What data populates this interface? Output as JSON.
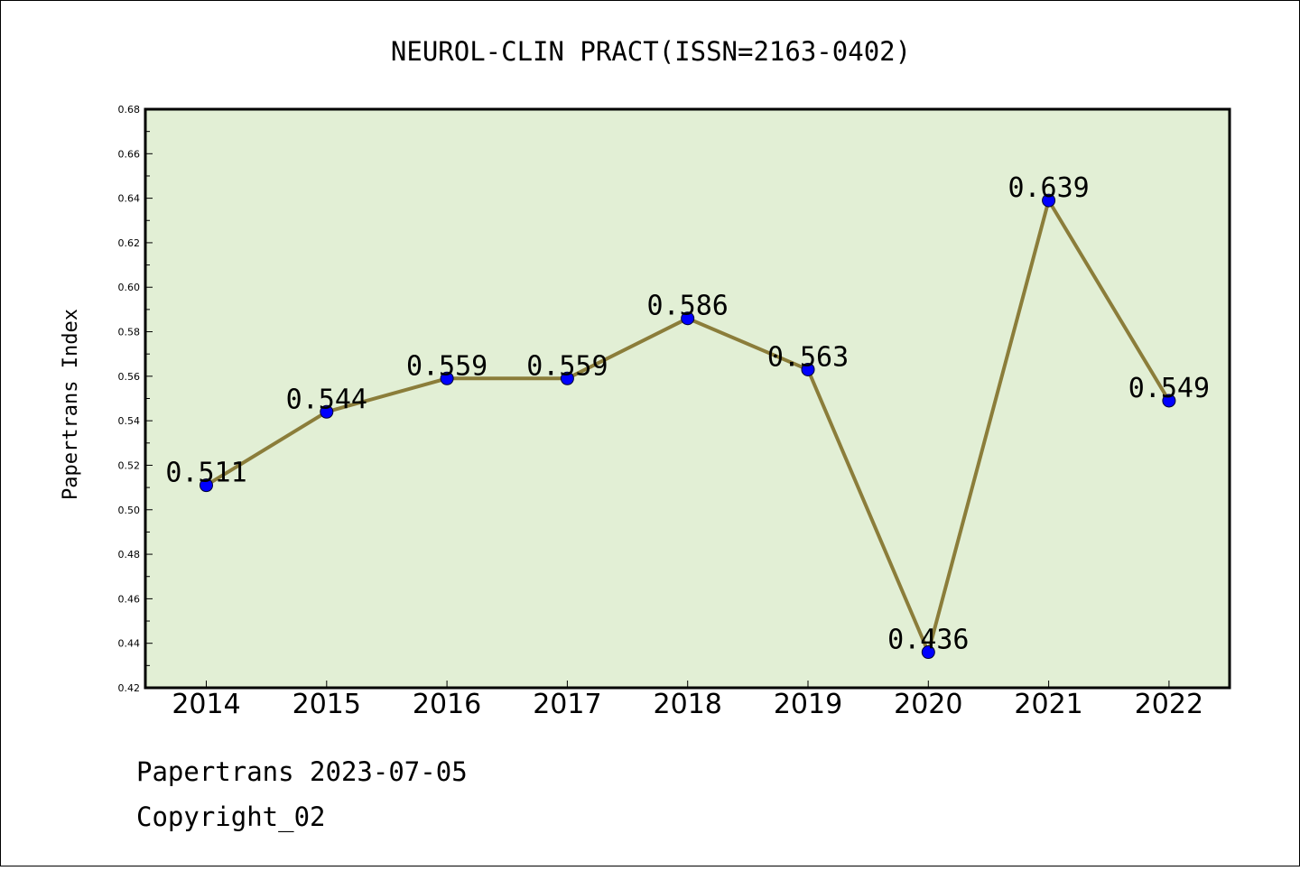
{
  "chart_data": {
    "type": "line",
    "title": "NEUROL-CLIN PRACT(ISSN=2163-0402)",
    "xlabel": "",
    "ylabel": "Papertrans Index",
    "categories": [
      "2014",
      "2015",
      "2016",
      "2017",
      "2018",
      "2019",
      "2020",
      "2021",
      "2022"
    ],
    "series": [
      {
        "values": [
          0.511,
          0.544,
          0.559,
          0.559,
          0.586,
          0.563,
          0.436,
          0.639,
          0.549
        ],
        "data_labels": [
          "0.511",
          "0.544",
          "0.559",
          "0.559",
          "0.586",
          "0.563",
          "0.436",
          "0.639",
          "0.549"
        ]
      }
    ],
    "ylim": [
      0.42,
      0.68
    ],
    "yticks": [
      "0.42",
      "0.44",
      "0.46",
      "0.48",
      "0.50",
      "0.52",
      "0.54",
      "0.56",
      "0.58",
      "0.60",
      "0.62",
      "0.64",
      "0.66",
      "0.68"
    ],
    "grid": false,
    "legend": "none",
    "colors": {
      "plot_background": "#e2efd5",
      "line": "#8b7d3a",
      "marker": "#0000ff"
    }
  },
  "footer": {
    "line1": "Papertrans 2023-07-05",
    "line2": "Copyright_02"
  }
}
